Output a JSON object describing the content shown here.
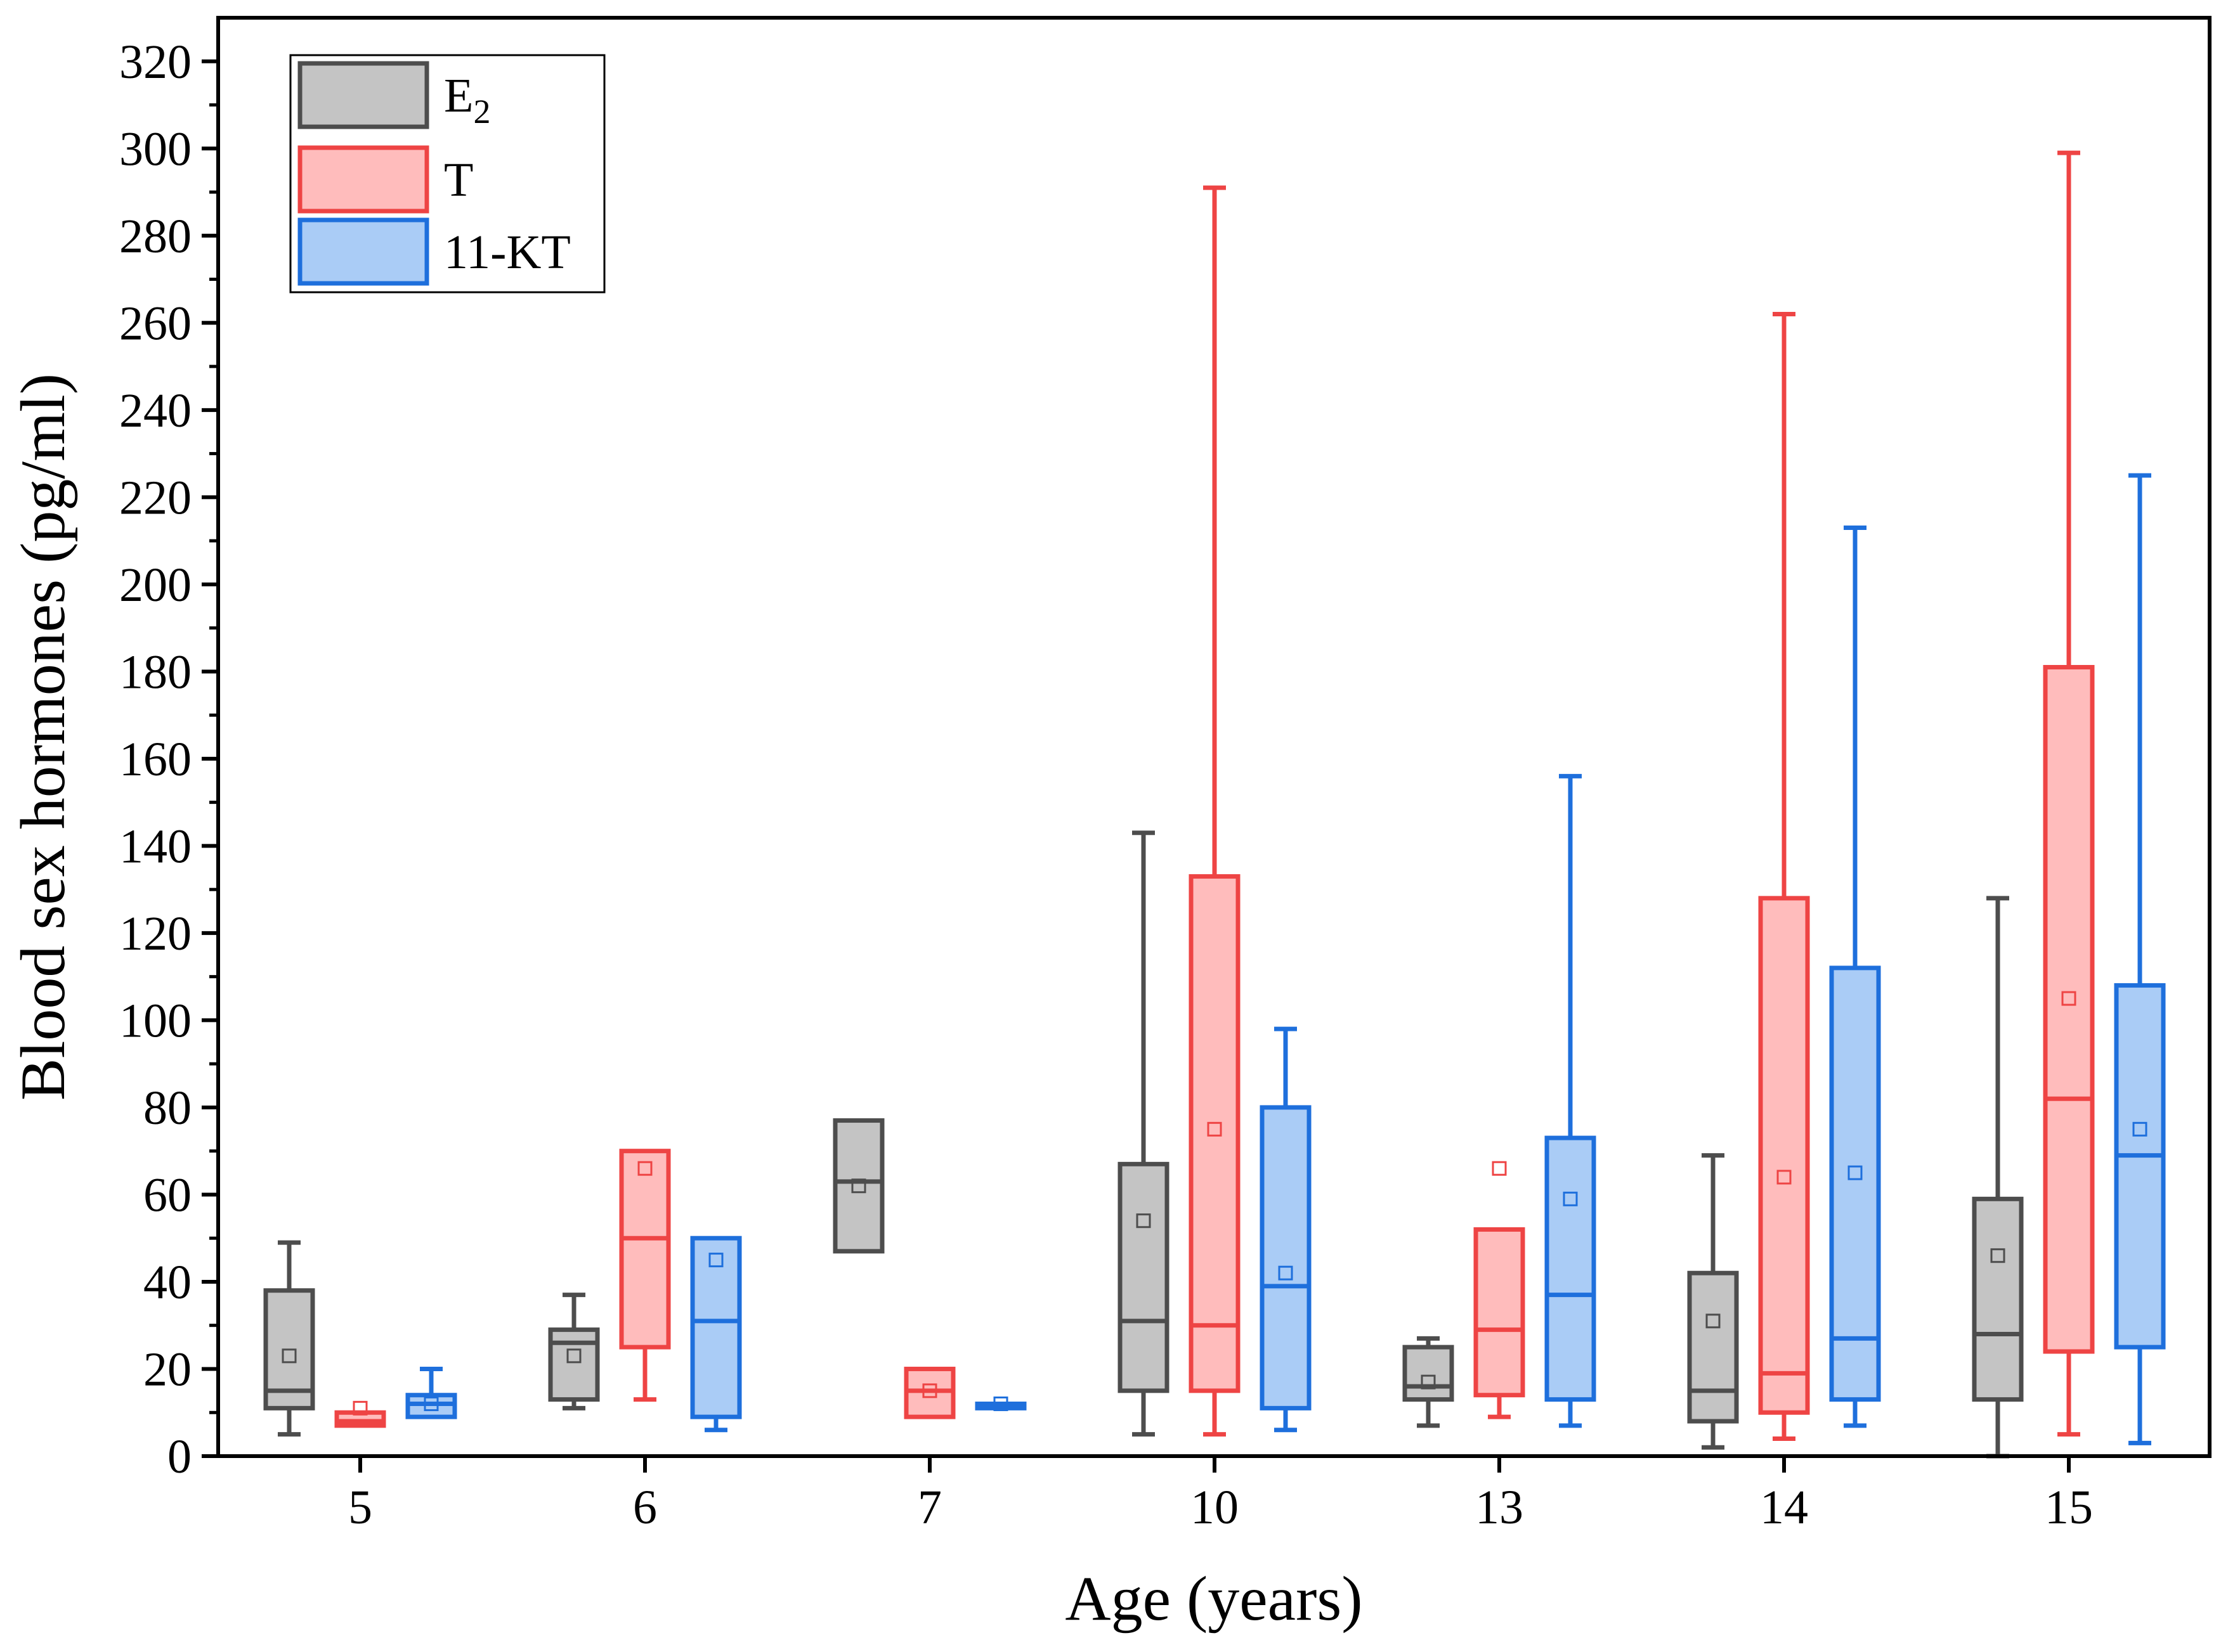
{
  "chart_data": {
    "type": "box",
    "xlabel": "Age (years)",
    "ylabel": "Blood sex hormones (pg/ml)",
    "ylim": [
      0,
      330
    ],
    "y_ticks": [
      "0",
      "20",
      "40",
      "60",
      "80",
      "100",
      "120",
      "140",
      "160",
      "180",
      "200",
      "220",
      "240",
      "260",
      "280",
      "300",
      "320"
    ],
    "y_tick_values": [
      0,
      20,
      40,
      60,
      80,
      100,
      120,
      140,
      160,
      180,
      200,
      220,
      240,
      260,
      280,
      300,
      320
    ],
    "categories": [
      "5",
      "6",
      "7",
      "10",
      "13",
      "14",
      "15"
    ],
    "legend_position": "top-left",
    "series": [
      {
        "name": "E",
        "name_subscript": "2",
        "stroke": "#4d4d4d",
        "fill": "#c4c4c4",
        "boxes": [
          {
            "min": 5,
            "q1": 11,
            "median": 15,
            "q3": 38,
            "max": 49,
            "mean": 23
          },
          {
            "min": 11,
            "q1": 13,
            "median": 26,
            "q3": 29,
            "max": 37,
            "mean": 23
          },
          {
            "min": null,
            "q1": 47,
            "median": 63,
            "q3": 77,
            "max": null,
            "mean": 62
          },
          {
            "min": 5,
            "q1": 15,
            "median": 31,
            "q3": 67,
            "max": 143,
            "mean": 54
          },
          {
            "min": 7,
            "q1": 13,
            "median": 16,
            "q3": 25,
            "max": 27,
            "mean": 17
          },
          {
            "min": 2,
            "q1": 8,
            "median": 15,
            "q3": 42,
            "max": 69,
            "mean": 31
          },
          {
            "min": 0,
            "q1": 13,
            "median": 28,
            "q3": 59,
            "max": 128,
            "mean": 46
          }
        ]
      },
      {
        "name": "T",
        "stroke": "#ee4444",
        "fill": "#ffbcbc",
        "boxes": [
          {
            "min": 7,
            "q1": 7,
            "median": 8,
            "q3": 10,
            "max": 10,
            "mean": 11
          },
          {
            "min": 13,
            "q1": 25,
            "median": 50,
            "q3": 70,
            "max": 70,
            "mean": 66
          },
          {
            "min": null,
            "q1": 9,
            "median": 15,
            "q3": 20,
            "max": null,
            "mean": 15
          },
          {
            "min": 5,
            "q1": 15,
            "median": 30,
            "q3": 133,
            "max": 291,
            "mean": 75
          },
          {
            "min": 9,
            "q1": 14,
            "median": 29,
            "q3": 52,
            "max": 52,
            "mean": 66
          },
          {
            "min": 4,
            "q1": 10,
            "median": 19,
            "q3": 128,
            "max": 262,
            "mean": 64
          },
          {
            "min": 5,
            "q1": 24,
            "median": 82,
            "q3": 181,
            "max": 299,
            "mean": 105
          }
        ]
      },
      {
        "name": "11-KT",
        "stroke": "#1e6fdc",
        "fill": "#aaccf6",
        "boxes": [
          {
            "min": 9,
            "q1": 9,
            "median": 12,
            "q3": 14,
            "max": 20,
            "mean": 12
          },
          {
            "min": 6,
            "q1": 9,
            "median": 31,
            "q3": 50,
            "max": 50,
            "mean": 45
          },
          {
            "min": null,
            "q1": 11,
            "median": 12,
            "q3": 12,
            "max": null,
            "mean": 12
          },
          {
            "min": 6,
            "q1": 11,
            "median": 39,
            "q3": 80,
            "max": 98,
            "mean": 42
          },
          {
            "min": 7,
            "q1": 13,
            "median": 37,
            "q3": 73,
            "max": 156,
            "mean": 59
          },
          {
            "min": 7,
            "q1": 13,
            "median": 27,
            "q3": 112,
            "max": 213,
            "mean": 65
          },
          {
            "min": 3,
            "q1": 25,
            "median": 69,
            "q3": 108,
            "max": 225,
            "mean": 75
          }
        ]
      }
    ]
  }
}
